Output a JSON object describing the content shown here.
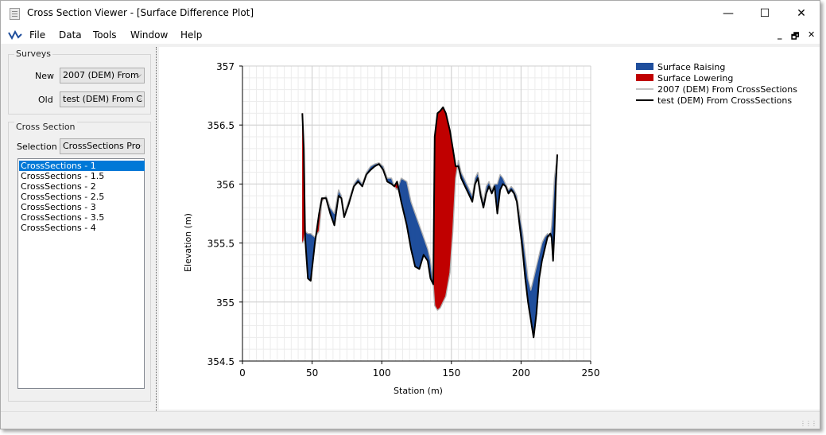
{
  "window": {
    "title": "Cross Section Viewer - [Surface Difference Plot]"
  },
  "titlebar_buttons": {
    "minimize": "—",
    "maximize": "☐",
    "close": "✕"
  },
  "menu": {
    "items": [
      "File",
      "Data",
      "Tools",
      "Window",
      "Help"
    ]
  },
  "mdi_buttons": {
    "minimize": "_",
    "restore": "🗗",
    "close": "✕"
  },
  "surveys": {
    "title": "Surveys",
    "new_label": "New",
    "new_value": "2007 (DEM) From",
    "old_label": "Old",
    "old_value": "test (DEM) From C"
  },
  "cross_section": {
    "title": "Cross Section",
    "selection_label": "Selection",
    "selection_value": "CrossSections Pro",
    "items": [
      "CrossSections - 1",
      "CrossSections - 1.5",
      "CrossSections - 2",
      "CrossSections - 2.5",
      "CrossSections - 3",
      "CrossSections - 3.5",
      "CrossSections - 4"
    ],
    "selected_index": 0
  },
  "colors": {
    "raising": "#1f4e9c",
    "lowering": "#c00000",
    "new_line": "#b0b0b0",
    "old_line": "#000000",
    "selection": "#0078d7"
  },
  "chart_data": {
    "type": "area",
    "xlabel": "Station (m)",
    "ylabel": "Elevation (m)",
    "xlim": [
      0,
      250
    ],
    "ylim": [
      354.5,
      357
    ],
    "xticks": [
      "0",
      "50",
      "100",
      "150",
      "200",
      "250"
    ],
    "yticks": [
      "354.5",
      "355",
      "355.5",
      "356",
      "356.5",
      "357"
    ],
    "grid": true,
    "legend_position": "top-right",
    "legend": [
      "Surface Raising",
      "Surface Lowering",
      "2007 (DEM) From CrossSections",
      "test (DEM) From CrossSections"
    ],
    "series": [
      {
        "name": "2007 (DEM) From CrossSections",
        "x": [
          43,
          44,
          45,
          47,
          49,
          52,
          55,
          57,
          60,
          63,
          66,
          69,
          71,
          73,
          76,
          80,
          83,
          86,
          89,
          92,
          95,
          98,
          101,
          104,
          107,
          109,
          111,
          114,
          118,
          121,
          124,
          127,
          130,
          133,
          135,
          137,
          138,
          140,
          142,
          144,
          146,
          149,
          151,
          153,
          155,
          157,
          159,
          161,
          163,
          165,
          167,
          169,
          171,
          173,
          175,
          177,
          179,
          181,
          183,
          185,
          187,
          189,
          191,
          193,
          195,
          197,
          199,
          201,
          203,
          205,
          207,
          209,
          211,
          213,
          215,
          217,
          219,
          221,
          222,
          223,
          224,
          225,
          226
        ],
        "y": [
          355.5,
          355.52,
          355.6,
          355.58,
          355.58,
          355.55,
          355.6,
          355.85,
          355.9,
          355.8,
          355.75,
          355.95,
          355.9,
          355.75,
          355.85,
          356.0,
          356.05,
          356.0,
          356.1,
          356.15,
          356.17,
          356.18,
          356.15,
          356.05,
          356.05,
          355.98,
          355.95,
          356.05,
          356.02,
          355.85,
          355.75,
          355.65,
          355.55,
          355.45,
          355.35,
          355.15,
          354.97,
          354.93,
          354.95,
          355.0,
          355.05,
          355.25,
          355.6,
          356.05,
          356.2,
          356.1,
          356.05,
          356.0,
          355.95,
          355.9,
          356.05,
          356.1,
          355.95,
          355.85,
          355.98,
          356.02,
          355.95,
          356.0,
          356.0,
          356.08,
          356.05,
          356.0,
          355.95,
          355.98,
          355.95,
          355.9,
          355.75,
          355.6,
          355.4,
          355.2,
          355.1,
          355.2,
          355.3,
          355.4,
          355.5,
          355.55,
          355.58,
          355.55,
          355.65,
          355.85,
          356.05,
          356.15,
          356.2
        ]
      },
      {
        "name": "test (DEM) From CrossSections",
        "x": [
          43,
          44,
          45,
          47,
          49,
          52,
          55,
          57,
          60,
          63,
          66,
          69,
          71,
          73,
          76,
          80,
          83,
          86,
          89,
          92,
          95,
          98,
          101,
          104,
          107,
          109,
          111,
          114,
          118,
          121,
          124,
          127,
          130,
          133,
          135,
          137,
          138,
          140,
          142,
          144,
          146,
          149,
          151,
          153,
          155,
          157,
          159,
          161,
          163,
          165,
          167,
          169,
          171,
          173,
          175,
          177,
          179,
          181,
          183,
          185,
          187,
          189,
          191,
          193,
          195,
          197,
          199,
          201,
          203,
          205,
          207,
          209,
          211,
          213,
          215,
          217,
          219,
          221,
          222,
          223,
          224,
          225,
          226
        ],
        "y": [
          356.6,
          356.3,
          355.55,
          355.2,
          355.18,
          355.5,
          355.75,
          355.88,
          355.88,
          355.75,
          355.65,
          355.9,
          355.88,
          355.72,
          355.82,
          355.98,
          356.02,
          355.98,
          356.08,
          356.12,
          356.15,
          356.17,
          356.12,
          356.02,
          356.0,
          355.98,
          356.02,
          355.85,
          355.65,
          355.45,
          355.3,
          355.28,
          355.4,
          355.35,
          355.2,
          355.15,
          356.4,
          356.6,
          356.62,
          356.65,
          356.6,
          356.45,
          356.3,
          356.15,
          356.15,
          356.05,
          356.0,
          355.95,
          355.9,
          355.85,
          356.0,
          356.05,
          355.9,
          355.8,
          355.92,
          355.98,
          355.92,
          355.98,
          355.75,
          355.95,
          356.0,
          355.98,
          355.92,
          355.95,
          355.92,
          355.85,
          355.65,
          355.45,
          355.2,
          355.0,
          354.85,
          354.7,
          354.9,
          355.2,
          355.35,
          355.45,
          355.55,
          355.58,
          355.55,
          355.35,
          355.6,
          356.0,
          356.25
        ]
      }
    ]
  }
}
